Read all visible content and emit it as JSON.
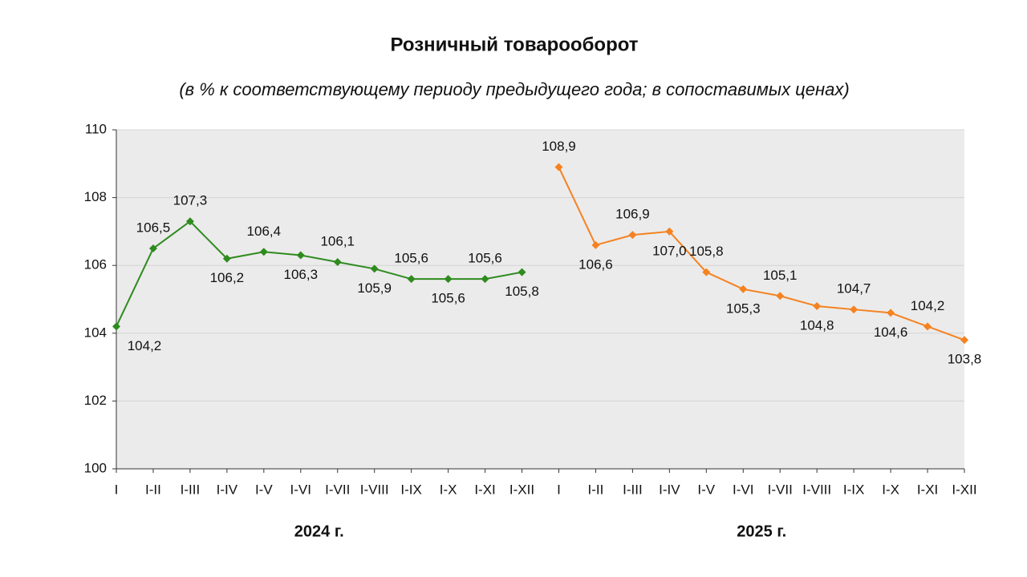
{
  "chart_data": {
    "type": "line",
    "title": "Розничный товарооборот",
    "subtitle": "(в % к соответствующему периоду предыдущего года; в сопоставимых ценах)",
    "categories": [
      "I",
      "I-II",
      "I-III",
      "I-IV",
      "I-V",
      "I-VI",
      "I-VII",
      "I-VIII",
      "I-IX",
      "I-X",
      "I-XI",
      "I-XII",
      "I",
      "I-II",
      "I-III",
      "I-IV",
      "I-V",
      "I-VI",
      "I-VII",
      "I-VIII",
      "I-IX",
      "I-X",
      "I-XI",
      "I-XII"
    ],
    "series": [
      {
        "name": "2024 г.",
        "color": "#2e8b1e",
        "values": [
          104.2,
          106.5,
          107.3,
          106.2,
          106.4,
          106.3,
          106.1,
          105.9,
          105.6,
          105.6,
          105.6,
          105.8,
          null,
          null,
          null,
          null,
          null,
          null,
          null,
          null,
          null,
          null,
          null,
          null
        ],
        "value_labels": [
          "104,2",
          "106,5",
          "107,3",
          "106,2",
          "106,4",
          "106,3",
          "106,1",
          "105,9",
          "105,6",
          "105,6",
          "105,6",
          "105,8",
          null,
          null,
          null,
          null,
          null,
          null,
          null,
          null,
          null,
          null,
          null,
          null
        ]
      },
      {
        "name": "2025 г.",
        "color": "#f58220",
        "values": [
          null,
          null,
          null,
          null,
          null,
          null,
          null,
          null,
          null,
          null,
          null,
          null,
          108.9,
          106.6,
          106.9,
          107.0,
          105.8,
          105.3,
          105.1,
          104.8,
          104.7,
          104.6,
          104.2,
          103.8
        ],
        "value_labels": [
          null,
          null,
          null,
          null,
          null,
          null,
          null,
          null,
          null,
          null,
          null,
          null,
          "108,9",
          "106,6",
          "106,9",
          "107,0",
          "105,8",
          "105,3",
          "105,1",
          "104,8",
          "104,7",
          "104,6",
          "104,2",
          "103,8"
        ]
      }
    ],
    "ylim": [
      100,
      110
    ],
    "yticks": [
      100,
      102,
      104,
      106,
      108,
      110
    ],
    "grid": true
  }
}
